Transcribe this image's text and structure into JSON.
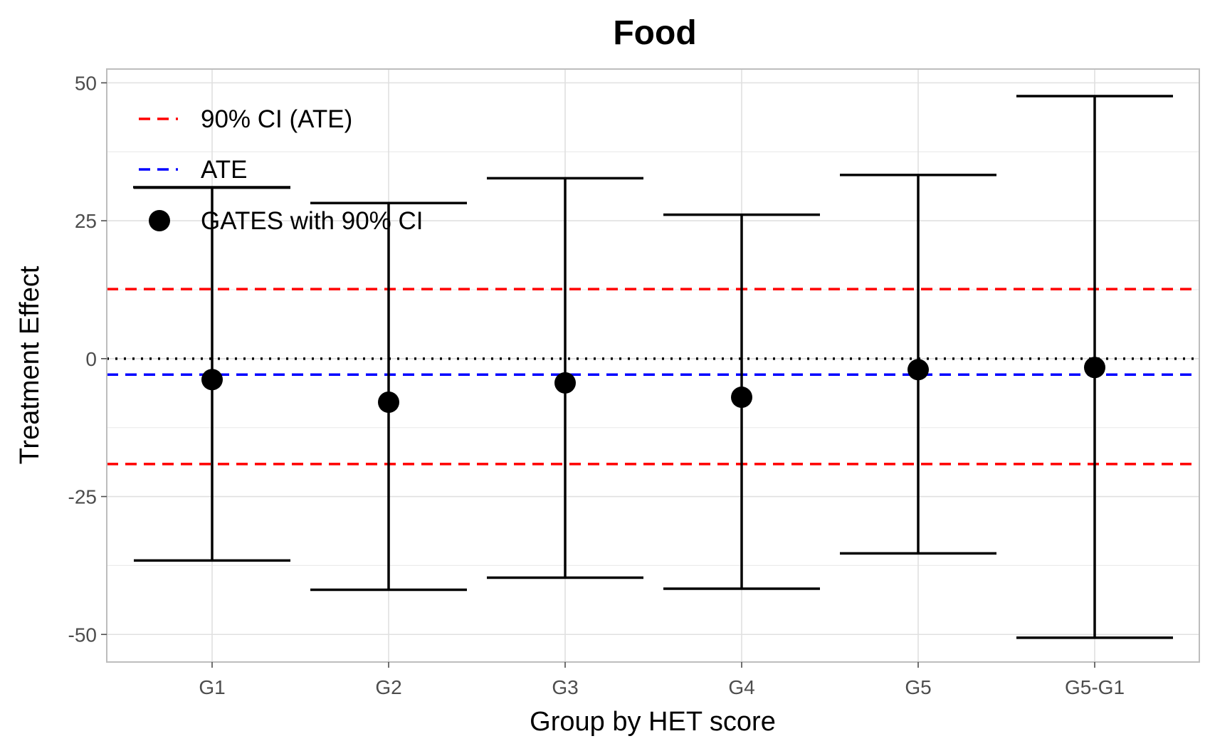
{
  "chart_data": {
    "type": "errorbar",
    "title": "Food",
    "xlabel": "Group by HET score",
    "ylabel": "Treatment Effect",
    "categories": [
      "G1",
      "G2",
      "G3",
      "G4",
      "G5",
      "G5-G1"
    ],
    "ylim": [
      -55,
      52.5
    ],
    "yticks": [
      50,
      25,
      0,
      -25,
      -50
    ],
    "ytick_labels": [
      "50",
      "25",
      "0",
      "-25",
      "-50"
    ],
    "series": [
      {
        "name": "GATES with 90% CI",
        "estimate": [
          -3.8,
          -7.9,
          -4.4,
          -7.0,
          -2.0,
          -1.6
        ],
        "ci_low": [
          -36.6,
          -41.9,
          -39.7,
          -41.7,
          -35.3,
          -50.6
        ],
        "ci_high": [
          31.0,
          28.2,
          32.7,
          26.1,
          33.3,
          47.6
        ]
      }
    ],
    "reference_lines": {
      "ate": -2.9,
      "ci_ate": [
        -19.1,
        12.6
      ],
      "zero": 0
    },
    "legend": {
      "placement": "top-left",
      "items": [
        {
          "label": "90% CI (ATE)",
          "style": "dashed",
          "color": "#ff0000"
        },
        {
          "label": "ATE",
          "style": "dashed",
          "color": "#0000ff"
        },
        {
          "label": "GATES with 90% CI",
          "style": "point-errorbar",
          "color": "#000000"
        }
      ]
    },
    "colors": {
      "ci_ate": "#ff0000",
      "ate": "#0000ff",
      "zero": "#000000",
      "points": "#000000",
      "grid": "#e0e0e0",
      "panel_border": "#bdbdbd"
    },
    "grid": true
  }
}
